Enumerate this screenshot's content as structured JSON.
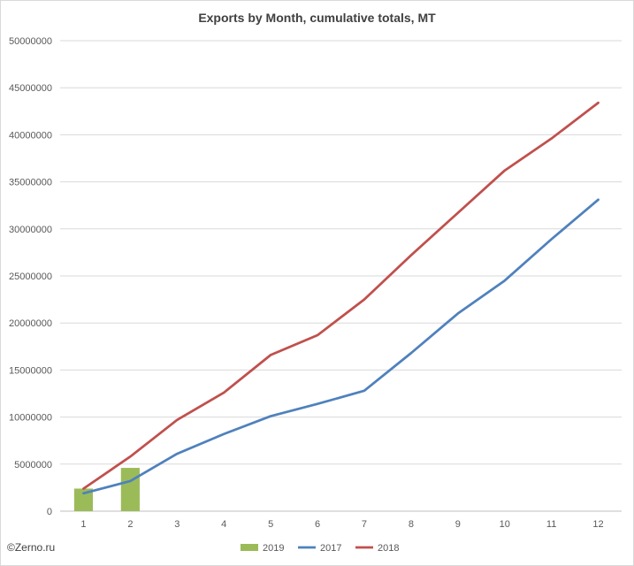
{
  "chart_data": {
    "type": "bar+line",
    "title": "Exports by Month, cumulative totals, MT",
    "categories": [
      "1",
      "2",
      "3",
      "4",
      "5",
      "6",
      "7",
      "8",
      "9",
      "10",
      "11",
      "12"
    ],
    "ylim": [
      0,
      50000000
    ],
    "yticks": [
      0,
      5000000,
      10000000,
      15000000,
      20000000,
      25000000,
      30000000,
      35000000,
      40000000,
      45000000,
      50000000
    ],
    "ytick_labels": [
      "0",
      "5000000",
      "10000000",
      "15000000",
      "20000000",
      "25000000",
      "30000000",
      "35000000",
      "40000000",
      "45000000",
      "50000000"
    ],
    "grid": true,
    "legend_position": "bottom",
    "series": [
      {
        "name": "2019",
        "kind": "bar",
        "color": "#9bbb59",
        "values": [
          2400000,
          4600000,
          null,
          null,
          null,
          null,
          null,
          null,
          null,
          null,
          null,
          null
        ]
      },
      {
        "name": "2017",
        "kind": "line",
        "color": "#4f81bd",
        "values": [
          1900000,
          3200000,
          6100000,
          8200000,
          10100000,
          11400000,
          12800000,
          16800000,
          21000000,
          24500000,
          28900000,
          33100000
        ]
      },
      {
        "name": "2018",
        "kind": "line",
        "color": "#c0504d",
        "values": [
          2400000,
          5800000,
          9700000,
          12600000,
          16600000,
          18700000,
          22500000,
          27200000,
          31700000,
          36200000,
          39600000,
          43400000
        ]
      }
    ]
  },
  "credit": "©Zerno.ru"
}
